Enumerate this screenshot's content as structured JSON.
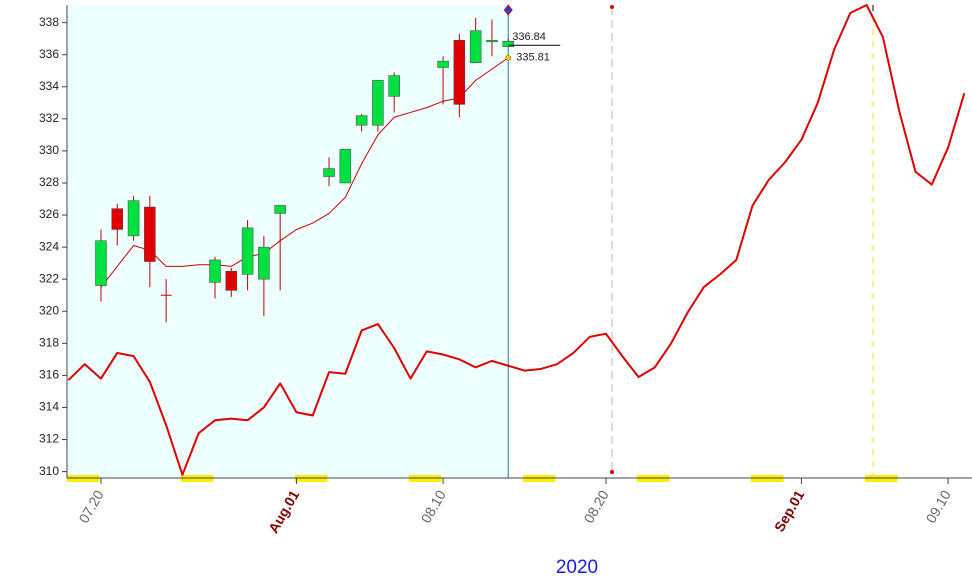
{
  "chart_data": {
    "type": "candlestick",
    "xlabel": "2020",
    "categories": [
      null,
      null,
      "07.20",
      null,
      null,
      null,
      null,
      null,
      null,
      null,
      null,
      null,
      null,
      null,
      "Aug.01",
      null,
      null,
      null,
      null,
      null,
      null,
      null,
      null,
      "08.10",
      null,
      null,
      null,
      null,
      null,
      null,
      null,
      null,
      null,
      "08.20",
      null,
      null,
      null,
      null,
      null,
      null,
      null,
      null,
      null,
      null,
      null,
      "Sep.01",
      null,
      null,
      null,
      null,
      null,
      null,
      null,
      null,
      "09.10",
      null
    ],
    "open": [
      null,
      null,
      321.6,
      326.4,
      324.7,
      326.5,
      321.0,
      null,
      null,
      321.8,
      322.5,
      322.3,
      322.0,
      326.1,
      null,
      null,
      328.4,
      328.0,
      331.6,
      331.6,
      333.4,
      null,
      null,
      335.2,
      336.9,
      335.5,
      336.8,
      336.5,
      null,
      null,
      null,
      null,
      null,
      null,
      null,
      null,
      null,
      null,
      null,
      null,
      null,
      null,
      null,
      null,
      null,
      null,
      null,
      null,
      null,
      null,
      null,
      null,
      null,
      null,
      null,
      null
    ],
    "high": [
      null,
      null,
      325.1,
      326.7,
      327.2,
      327.2,
      322.0,
      null,
      null,
      323.4,
      322.7,
      325.7,
      324.7,
      326.6,
      null,
      null,
      329.6,
      330.1,
      332.3,
      334.4,
      334.9,
      null,
      null,
      335.9,
      337.3,
      338.3,
      338.2,
      337.0,
      null,
      null,
      null,
      null,
      null,
      null,
      null,
      null,
      null,
      null,
      null,
      null,
      null,
      null,
      null,
      null,
      null,
      null,
      null,
      null,
      null,
      null,
      null,
      null,
      null,
      null,
      null,
      null
    ],
    "low": [
      null,
      null,
      320.6,
      324.1,
      324.4,
      321.5,
      319.3,
      null,
      null,
      320.8,
      320.9,
      321.3,
      319.7,
      321.3,
      null,
      null,
      327.8,
      328.0,
      331.2,
      331.2,
      332.4,
      null,
      null,
      332.9,
      332.1,
      335.5,
      335.9,
      336.5,
      null,
      null,
      null,
      null,
      null,
      null,
      null,
      null,
      null,
      null,
      null,
      null,
      null,
      null,
      null,
      null,
      null,
      null,
      null,
      null,
      null,
      null,
      null,
      null,
      null,
      null,
      null,
      null
    ],
    "close": [
      null,
      null,
      324.4,
      325.1,
      326.9,
      323.1,
      321.0,
      null,
      null,
      323.2,
      321.3,
      325.2,
      324.0,
      326.6,
      null,
      null,
      328.9,
      330.1,
      332.2,
      334.4,
      334.7,
      null,
      null,
      335.6,
      332.9,
      337.5,
      336.9,
      336.84,
      null,
      null,
      null,
      null,
      null,
      null,
      null,
      null,
      null,
      null,
      null,
      null,
      null,
      null,
      null,
      null,
      null,
      null,
      null,
      null,
      null,
      null,
      null,
      null,
      null,
      null,
      null,
      null
    ],
    "up_color": "#00e040",
    "down_color": "#e00000",
    "series": [
      {
        "color": "#cc0000",
        "values": [
          null,
          null,
          321.5,
          322.8,
          324.1,
          323.8,
          322.8,
          322.8,
          322.9,
          322.9,
          322.8,
          323.4,
          323.6,
          324.4,
          325.1,
          325.5,
          326.1,
          327.1,
          329.2,
          331.0,
          332.1,
          332.4,
          332.7,
          333.1,
          333.3,
          334.4,
          335.1,
          335.81,
          null,
          null,
          null,
          null,
          null,
          null,
          null,
          null,
          null,
          null,
          null,
          null,
          null,
          null,
          null,
          null,
          null,
          null,
          null,
          null,
          null,
          null,
          null,
          null,
          null,
          null,
          null,
          null
        ]
      },
      {
        "color": "#e00000",
        "values": [
          315.7,
          316.7,
          315.8,
          317.4,
          317.2,
          315.6,
          312.9,
          309.8,
          312.4,
          313.2,
          313.3,
          313.2,
          314.0,
          315.5,
          313.7,
          313.5,
          316.2,
          316.1,
          318.8,
          319.2,
          317.7,
          315.8,
          317.5,
          317.3,
          317.0,
          316.5,
          316.9,
          316.6,
          316.3,
          316.4,
          316.7,
          317.4,
          318.4,
          318.6,
          317.2,
          315.9,
          316.5,
          318.0,
          319.9,
          321.5,
          322.3,
          323.2,
          326.6,
          328.2,
          329.3,
          330.7,
          333.0,
          336.3,
          338.6,
          339.1,
          337.1,
          332.5,
          328.7,
          327.9,
          330.2,
          333.6
        ]
      }
    ],
    "ylim": [
      309.6,
      339.1
    ],
    "yticks": [
      310,
      312,
      314,
      316,
      318,
      320,
      322,
      324,
      326,
      328,
      330,
      332,
      334,
      336,
      338
    ]
  }
}
